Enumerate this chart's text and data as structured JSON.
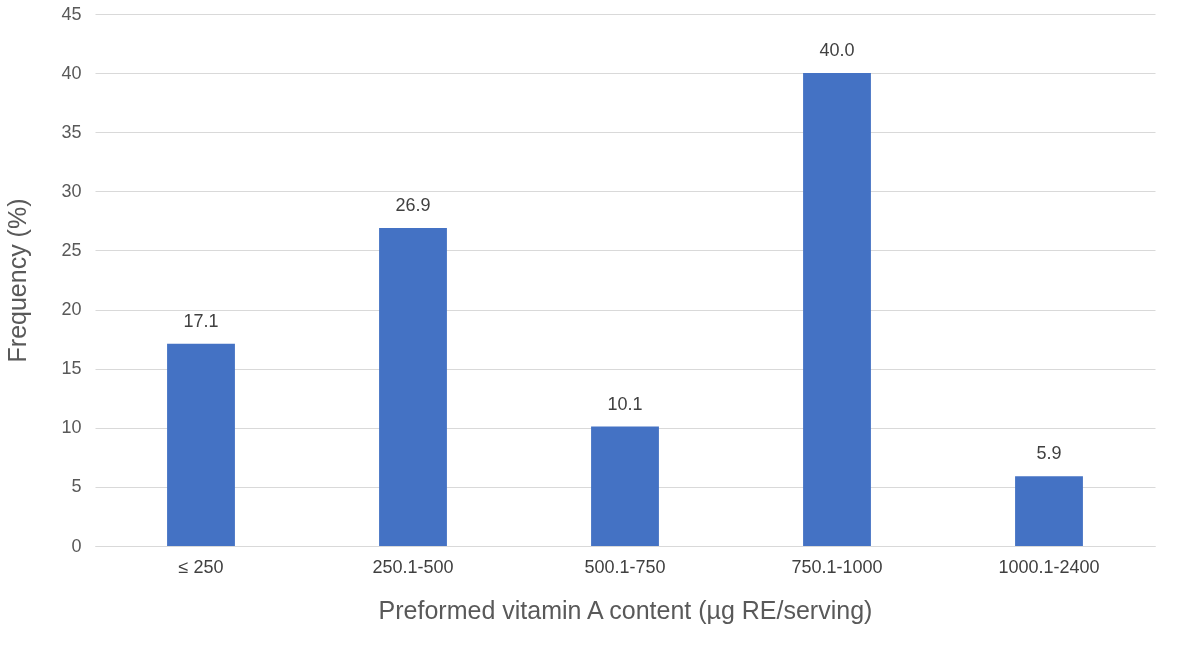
{
  "chart_data": {
    "type": "bar",
    "xlabel": "Preformed vitamin A content (µg RE/serving)",
    "ylabel": "Frequency (%)",
    "categories": [
      "≤ 250",
      "250.1-500",
      "500.1-750",
      "750.1-1000",
      "1000.1-2400"
    ],
    "values": [
      17.1,
      26.9,
      10.1,
      40.0,
      5.9
    ],
    "value_labels": [
      "17.1",
      "26.9",
      "10.1",
      "40.0",
      "5.9"
    ],
    "color": "#4472c4",
    "ylim": [
      0,
      45
    ],
    "yticks": [
      0,
      5,
      10,
      15,
      20,
      25,
      30,
      35,
      40,
      45
    ],
    "grid": "y"
  }
}
